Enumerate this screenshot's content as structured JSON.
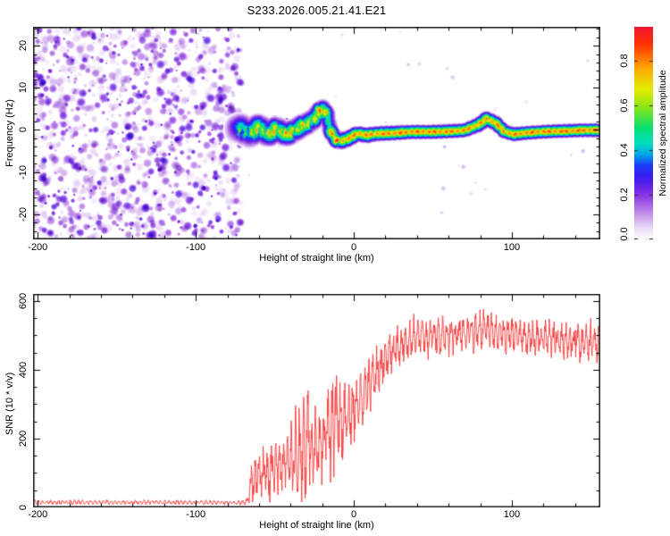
{
  "page": {
    "title": "S233.2026.005.21.41.E21"
  },
  "chart_data": [
    {
      "type": "heatmap",
      "name": "doppler-spectrogram",
      "title": "S233.2026.005.21.41.E21",
      "xlabel": "Height of straight line (km)",
      "ylabel": "Frequency (Hz)",
      "xlim": [
        -203,
        156
      ],
      "ylim": [
        -26,
        24.5
      ],
      "xticks": {
        "values": [
          -200,
          -100,
          0,
          100
        ],
        "labels": [
          "-200",
          "-100",
          "0",
          "100"
        ],
        "minor_step": 20
      },
      "yticks": {
        "values": [
          -20,
          -10,
          0,
          10,
          20
        ],
        "labels": [
          "-20",
          "-10",
          "0",
          "10",
          "20"
        ],
        "minor_step": 2
      },
      "grid": false,
      "colorbar": {
        "label": "Normalized spectral amplitude",
        "tick_values": [
          0,
          0.2,
          0.4,
          0.6,
          0.8
        ],
        "tick_labels": [
          "0.0",
          "0.2",
          "0.4",
          "0.6",
          "0.8"
        ],
        "range": [
          0,
          0.95
        ]
      },
      "colormap_stops": [
        [
          0,
          "#ffffff"
        ],
        [
          0.05,
          "#ecdcf8"
        ],
        [
          0.12,
          "#c08ae8"
        ],
        [
          0.2,
          "#8832e2"
        ],
        [
          0.27,
          "#4418ee"
        ],
        [
          0.33,
          "#1b3bf5"
        ],
        [
          0.38,
          "#00a8e8"
        ],
        [
          0.43,
          "#00dfc0"
        ],
        [
          0.5,
          "#0ae070"
        ],
        [
          0.58,
          "#7de41e"
        ],
        [
          0.67,
          "#e6ee00"
        ],
        [
          0.77,
          "#ffa400"
        ],
        [
          0.87,
          "#ff3300"
        ],
        [
          1,
          "#ec0455"
        ]
      ],
      "noise_field": {
        "h_range": [
          -203,
          -71
        ],
        "f_range": [
          -26,
          24.5
        ],
        "blob_count": 1300,
        "amp_range": [
          0.03,
          0.24
        ],
        "seed": 42,
        "sparse_blob_count": 26,
        "cluster_blob_count": 70
      },
      "ridge_format": [
        "height_km",
        "frequency_hz",
        "amplitude",
        "halfwidth_hz"
      ],
      "ridge": [
        [
          -74,
          0.1,
          0.45,
          3.2
        ],
        [
          -71,
          0.5,
          0.55,
          3.2
        ],
        [
          -66,
          -1.0,
          0.6,
          3.0
        ],
        [
          -60,
          0.5,
          0.75,
          3.0
        ],
        [
          -54,
          -0.9,
          0.7,
          2.8
        ],
        [
          -49,
          0.1,
          0.8,
          2.7
        ],
        [
          -43,
          -0.9,
          0.75,
          2.6
        ],
        [
          -37,
          -0.2,
          0.8,
          2.5
        ],
        [
          -32,
          1.2,
          0.7,
          2.4
        ],
        [
          -26,
          2.2,
          0.75,
          2.3
        ],
        [
          -20,
          5.0,
          0.8,
          2.1
        ],
        [
          -17,
          3.7,
          0.8,
          2.0
        ],
        [
          -15,
          0.1,
          0.85,
          2.0
        ],
        [
          -12,
          -2.0,
          0.85,
          2.0
        ],
        [
          -9,
          -2.7,
          0.9,
          2.0
        ],
        [
          -3,
          -2.0,
          0.9,
          1.9
        ],
        [
          2,
          -0.9,
          0.92,
          1.8
        ],
        [
          8,
          -1.3,
          0.92,
          1.8
        ],
        [
          14,
          -0.9,
          0.92,
          1.7
        ],
        [
          25,
          -0.7,
          0.94,
          1.7
        ],
        [
          36,
          -0.5,
          0.94,
          1.6
        ],
        [
          47,
          -0.5,
          0.94,
          1.6
        ],
        [
          59,
          -0.3,
          0.94,
          1.6
        ],
        [
          70,
          -0.1,
          0.92,
          1.6
        ],
        [
          79,
          1.2,
          0.9,
          1.7
        ],
        [
          84,
          2.6,
          0.9,
          1.8
        ],
        [
          90,
          1.6,
          0.9,
          1.7
        ],
        [
          95,
          -0.3,
          0.92,
          1.6
        ],
        [
          101,
          -1.0,
          0.92,
          1.6
        ],
        [
          110,
          -0.7,
          0.94,
          1.55
        ],
        [
          127,
          -0.3,
          0.95,
          1.55
        ],
        [
          143,
          -0.1,
          0.95,
          1.55
        ],
        [
          156,
          -0.1,
          0.95,
          1.55
        ]
      ]
    },
    {
      "type": "line",
      "name": "snr-profile",
      "xlabel": "Height of straight line (km)",
      "ylabel": "SNR (10 * v/v)",
      "color": "#f43b3b",
      "xlim": [
        -203,
        156
      ],
      "ylim": [
        0,
        620
      ],
      "xticks": {
        "values": [
          -200,
          -100,
          0,
          100
        ],
        "labels": [
          "-200",
          "-100",
          "0",
          "100"
        ],
        "minor_step": 20
      },
      "yticks": {
        "values": [
          0,
          200,
          400,
          600
        ],
        "labels": [
          "0",
          "200",
          "400",
          "600"
        ],
        "minor_step": 50
      },
      "n_points": 1500,
      "seed": 9,
      "envelope_format": [
        "height_km",
        "snr_mean",
        "snr_fluctuation"
      ],
      "envelope": [
        [
          -203,
          15,
          7
        ],
        [
          -120,
          15,
          7
        ],
        [
          -70,
          14,
          7
        ],
        [
          -67,
          18,
          12
        ],
        [
          -65,
          70,
          65
        ],
        [
          -60,
          100,
          90
        ],
        [
          -55,
          95,
          85
        ],
        [
          -50,
          110,
          95
        ],
        [
          -45,
          120,
          100
        ],
        [
          -40,
          140,
          115
        ],
        [
          -33,
          170,
          160
        ],
        [
          -28,
          180,
          150
        ],
        [
          -22,
          160,
          120
        ],
        [
          -16,
          200,
          140
        ],
        [
          -11,
          260,
          170
        ],
        [
          -8,
          230,
          120
        ],
        [
          -4,
          255,
          110
        ],
        [
          0,
          280,
          100
        ],
        [
          5,
          320,
          90
        ],
        [
          10,
          355,
          85
        ],
        [
          15,
          395,
          80
        ],
        [
          20,
          430,
          70
        ],
        [
          25,
          455,
          65
        ],
        [
          30,
          475,
          60
        ],
        [
          40,
          490,
          60
        ],
        [
          55,
          495,
          60
        ],
        [
          70,
          505,
          60
        ],
        [
          82,
          515,
          65
        ],
        [
          95,
          500,
          60
        ],
        [
          110,
          495,
          60
        ],
        [
          125,
          490,
          55
        ],
        [
          140,
          480,
          55
        ],
        [
          156,
          470,
          55
        ]
      ]
    }
  ]
}
